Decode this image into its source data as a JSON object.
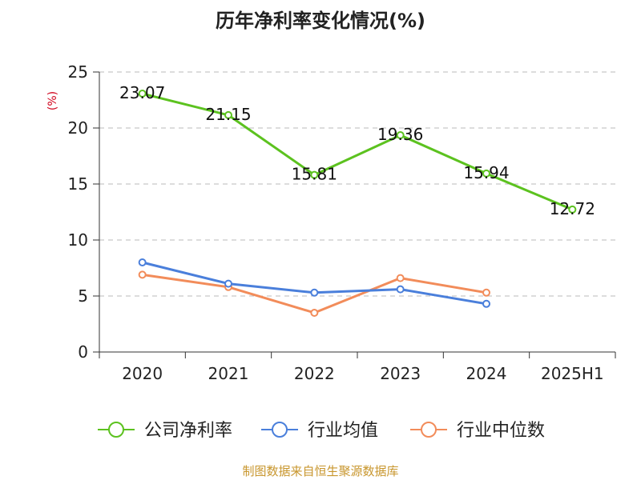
{
  "chart_data": {
    "type": "line",
    "title": "历年净利率变化情况(%)",
    "ylabel": "(%)",
    "xlabel": "",
    "categories": [
      "2020",
      "2021",
      "2022",
      "2023",
      "2024",
      "2025H1"
    ],
    "ylim": [
      0,
      25
    ],
    "yticks": [
      "0",
      "5",
      "10",
      "15",
      "20",
      "25"
    ],
    "grid": true,
    "legend_position": "bottom",
    "series": [
      {
        "name": "公司净利率",
        "color": "#5cc21f",
        "values": [
          23.07,
          21.15,
          15.81,
          19.36,
          15.94,
          12.72
        ],
        "labels": [
          "23.07",
          "21.15",
          "15.81",
          "19.36",
          "15.94",
          "12.72"
        ]
      },
      {
        "name": "行业均值",
        "color": "#4a7fdb",
        "values": [
          8.0,
          6.1,
          5.3,
          5.6,
          4.3,
          null
        ]
      },
      {
        "name": "行业中位数",
        "color": "#f28c5a",
        "values": [
          6.9,
          5.8,
          3.5,
          6.6,
          5.3,
          null
        ]
      }
    ],
    "source": "制图数据来自恒生聚源数据库"
  }
}
